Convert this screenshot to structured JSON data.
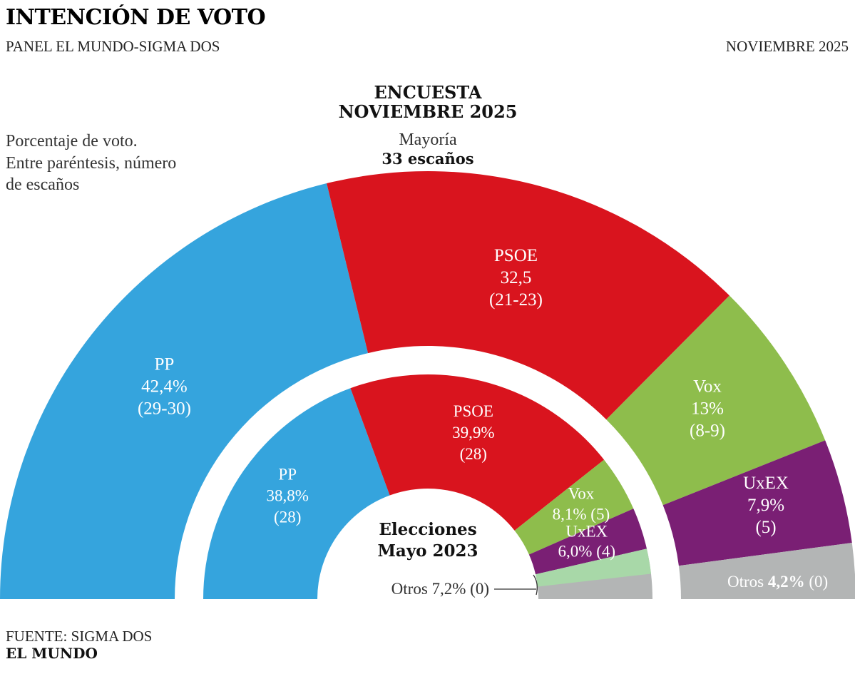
{
  "header": {
    "title": "INTENCIÓN DE VOTO",
    "subtitle": "PANEL EL MUNDO-SIGMA DOS",
    "date": "NOVIEMBRE 2025"
  },
  "note": {
    "line1": "Porcentaje de voto.",
    "line2": "Entre paréntesis, número",
    "line3": "de escaños"
  },
  "survey_title": {
    "line1": "ENCUESTA",
    "line2": "NOVIEMBRE 2025"
  },
  "majority": {
    "line1": "Mayoría",
    "line2": "33 escaños"
  },
  "footer": {
    "source": "FUENTE: SIGMA DOS",
    "brand": "EL MUNDO"
  },
  "colors": {
    "PP": "#35a4dd",
    "PSOE": "#d9141e",
    "Vox": "#8ebd4c",
    "UxEX": "#7a1f74",
    "Otros": "#b3b5b5",
    "Otros_light": "#a8d8a8"
  },
  "chart_data": [
    {
      "type": "pie",
      "variant": "half-donut",
      "name": "Encuesta noviembre 2025",
      "labels": [
        "PP",
        "PSOE",
        "Vox",
        "UxEX",
        "Otros"
      ],
      "values": [
        42.4,
        32.5,
        13,
        7.9,
        4.2
      ],
      "seats": [
        "29-30",
        "21-23",
        "8-9",
        "5",
        "0"
      ],
      "display": [
        {
          "party": "PP",
          "value": "42,4%",
          "seats": "(29-30)"
        },
        {
          "party": "PSOE",
          "value": "32,5",
          "seats": "(21-23)"
        },
        {
          "party": "Vox",
          "value": "13%",
          "seats": "(8-9)"
        },
        {
          "party": "UxEX",
          "value": "7,9%",
          "seats": "(5)"
        },
        {
          "party": "Otros",
          "value": "4,2%",
          "seats": "(0)"
        }
      ]
    },
    {
      "type": "pie",
      "variant": "half-donut",
      "name": "Elecciones Mayo 2023",
      "title_line1": "Elecciones",
      "title_line2": "Mayo 2023",
      "labels": [
        "PP",
        "PSOE",
        "Vox",
        "UxEX",
        "Otros"
      ],
      "values": [
        38.8,
        39.9,
        8.1,
        6.0,
        7.2
      ],
      "seats": [
        "28",
        "28",
        "5",
        "4",
        "0"
      ],
      "display": [
        {
          "party": "PP",
          "value": "38,8%",
          "seats": "(28)"
        },
        {
          "party": "PSOE",
          "value": "39,9%",
          "seats": "(28)"
        },
        {
          "party": "Vox",
          "value": "8,1%",
          "seats": "(5)"
        },
        {
          "party": "UxEX",
          "value": "6,0%",
          "seats": "(4)"
        },
        {
          "party": "Otros",
          "value": "7,2%",
          "seats": "(0)"
        }
      ]
    }
  ]
}
